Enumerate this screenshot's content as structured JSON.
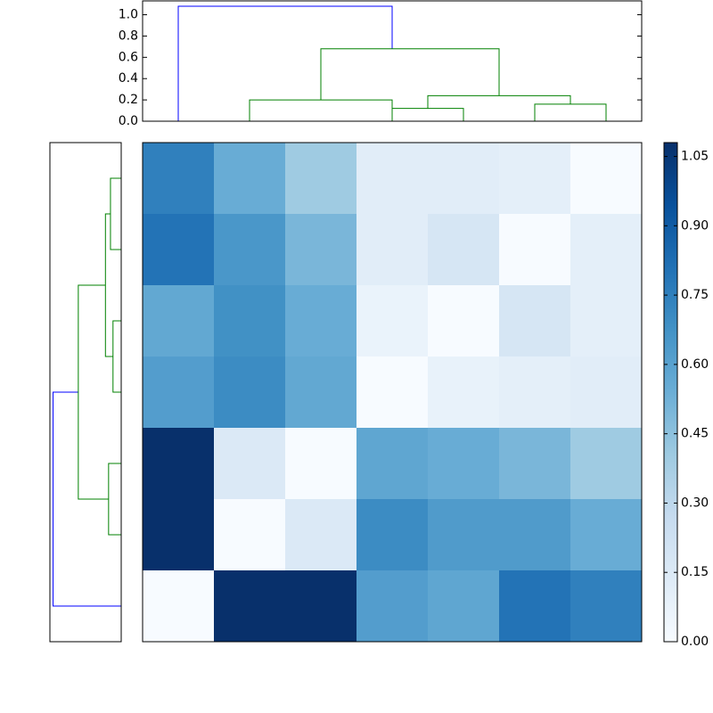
{
  "chart_data": [
    {
      "type": "dendrogram",
      "orientation": "top",
      "ylim": [
        0,
        1.13
      ],
      "yticks": [
        {
          "value": 0,
          "label": "0.0"
        },
        0.2,
        0.4,
        0.6,
        0.8,
        {
          "value": 1,
          "label": "1.0"
        }
      ],
      "links": [
        {
          "color": "#0000ff",
          "icoord": [
            5,
            5,
            35,
            35
          ],
          "dcoord": [
            0,
            1.08,
            1.08,
            0.68
          ]
        },
        {
          "color": "#008000",
          "icoord": [
            15,
            15,
            35,
            35
          ],
          "dcoord": [
            0,
            0.2,
            0.2,
            0
          ]
        },
        {
          "color": "#008000",
          "icoord": [
            25,
            25,
            50,
            50
          ],
          "dcoord": [
            0.2,
            0.68,
            0.68,
            0.24
          ]
        },
        {
          "color": "#008000",
          "icoord": [
            40,
            40,
            60,
            60
          ],
          "dcoord": [
            0.12,
            0.24,
            0.24,
            0.16
          ]
        },
        {
          "color": "#008000",
          "icoord": [
            35,
            35,
            45,
            45
          ],
          "dcoord": [
            0,
            0.12,
            0.12,
            0
          ]
        },
        {
          "color": "#008000",
          "icoord": [
            55,
            55,
            65,
            65
          ],
          "dcoord": [
            0,
            0.16,
            0.16,
            0
          ]
        }
      ]
    },
    {
      "type": "dendrogram",
      "orientation": "left",
      "xlim": [
        0,
        1.13
      ],
      "links": [
        {
          "color": "#0000ff",
          "icoord": [
            35,
            35,
            65,
            65
          ],
          "dcoord": [
            0.68,
            1.08,
            1.08,
            0
          ]
        },
        {
          "color": "#008000",
          "icoord": [
            20,
            20,
            50,
            50
          ],
          "dcoord": [
            0.25,
            0.68,
            0.68,
            0.2
          ]
        },
        {
          "color": "#008000",
          "icoord": [
            10,
            10,
            30,
            30
          ],
          "dcoord": [
            0.17,
            0.25,
            0.25,
            0.13
          ]
        },
        {
          "color": "#008000",
          "icoord": [
            5,
            5,
            15,
            15
          ],
          "dcoord": [
            0,
            0.17,
            0.17,
            0
          ]
        },
        {
          "color": "#008000",
          "icoord": [
            25,
            25,
            35,
            35
          ],
          "dcoord": [
            0,
            0.13,
            0.13,
            0
          ]
        },
        {
          "color": "#008000",
          "icoord": [
            45,
            45,
            55,
            55
          ],
          "dcoord": [
            0,
            0.2,
            0.2,
            0
          ]
        }
      ]
    },
    {
      "type": "heatmap",
      "values": [
        [
          0.75,
          0.55,
          0.4,
          0.12,
          0.12,
          0.1,
          0.0
        ],
        [
          0.8,
          0.65,
          0.5,
          0.12,
          0.18,
          0.0,
          0.1
        ],
        [
          0.57,
          0.68,
          0.55,
          0.07,
          0.0,
          0.18,
          0.1
        ],
        [
          0.62,
          0.7,
          0.57,
          0.0,
          0.08,
          0.1,
          0.12
        ],
        [
          1.08,
          0.15,
          0.0,
          0.58,
          0.55,
          0.5,
          0.4
        ],
        [
          1.08,
          0.0,
          0.15,
          0.7,
          0.63,
          0.63,
          0.55
        ],
        [
          0.0,
          1.08,
          1.08,
          0.62,
          0.58,
          0.8,
          0.75
        ]
      ],
      "colormap": [
        "#f7fbff",
        "#deebf7",
        "#c6dbef",
        "#9ecae1",
        "#6baed6",
        "#4292c6",
        "#2171b5",
        "#08519c",
        "#08306b"
      ],
      "clim": [
        0,
        1.08
      ],
      "cticks": [
        {
          "value": 0,
          "label": "0.00"
        },
        0.15,
        {
          "value": 0.3,
          "label": "0.30"
        },
        0.45,
        {
          "value": 0.6,
          "label": "0.60"
        },
        0.75,
        {
          "value": 0.9,
          "label": "0.90"
        },
        1.05
      ]
    }
  ]
}
